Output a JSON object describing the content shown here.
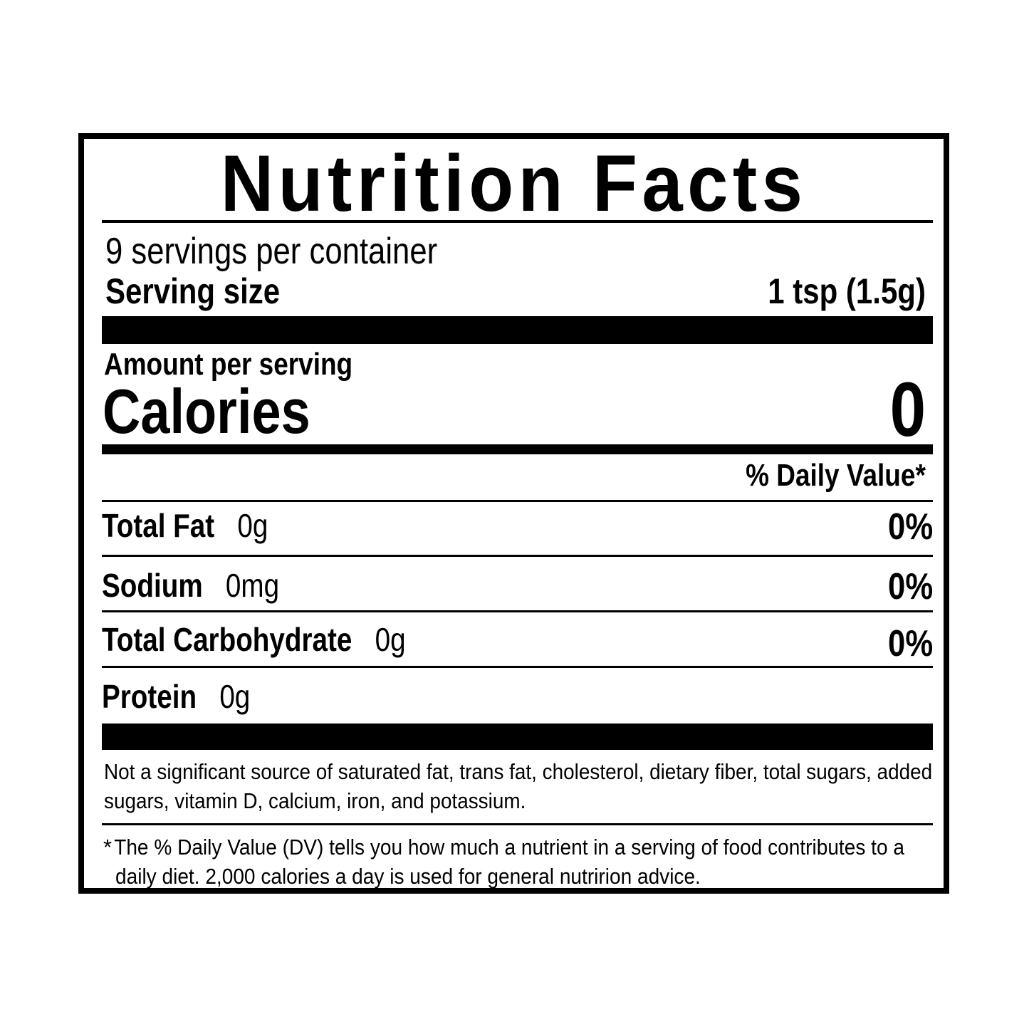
{
  "title": "Nutrition Facts",
  "servings_per_container": "9 servings per container",
  "serving_size": {
    "label": "Serving size",
    "value": "1 tsp (1.5g)"
  },
  "amount_per_serving": "Amount per serving",
  "calories": {
    "label": "Calories",
    "value": "0"
  },
  "daily_value_header": "% Daily Value*",
  "nutrients": [
    {
      "name": "Total Fat",
      "amount": "0g",
      "dv": "0%"
    },
    {
      "name": "Sodium",
      "amount": "0mg",
      "dv": "0%"
    },
    {
      "name": "Total Carbohydrate",
      "amount": "0g",
      "dv": "0%"
    },
    {
      "name": "Protein",
      "amount": "0g",
      "dv": ""
    }
  ],
  "not_significant": "Not a significant source of saturated fat, trans fat, cholesterol, dietary fiber, total sugars, added sugars, vitamin D, calcium, iron, and potassium.",
  "footnote_marker": "*",
  "footnote": "The % Daily Value (DV) tells you how much a nutrient in a serving of food contributes to a daily diet. 2,000 calories a day is used for general nutririon advice."
}
